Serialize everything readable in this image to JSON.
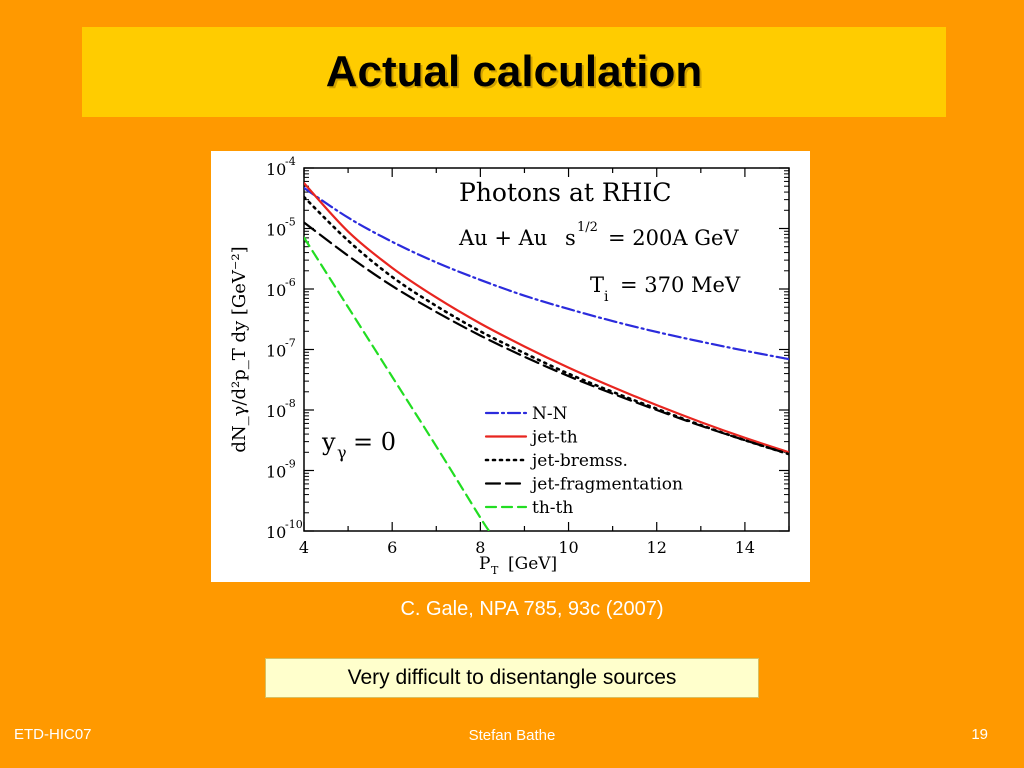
{
  "slide": {
    "title": "Actual calculation",
    "citation": "C. Gale, NPA 785, 93c (2007)",
    "note": "Very difficult to disentangle sources",
    "footer_left": "ETD-HIC07",
    "footer_center": "Stefan Bathe",
    "page_number": "19",
    "colors": {
      "background": "#ff9900",
      "title_bar": "#ffcc00",
      "note_box": "#ffffcc"
    }
  },
  "chart_data": {
    "type": "line",
    "title": "Photons at RHIC",
    "annotations": {
      "system": "Au + Au",
      "s_label": "s",
      "s_exp": "1/2",
      "energy": "= 200A GeV",
      "Ti_label": "T",
      "Ti_sub": "i",
      "Ti_value": "= 370 MeV",
      "rapidity_label": "y",
      "rapidity_sub": "γ",
      "rapidity_value": "= 0"
    },
    "xlabel": "P",
    "xlabel_sub": "T",
    "xlabel_unit": "[GeV]",
    "ylabel": "dN_γ/d²p_T dy [GeV⁻²]",
    "xlim": [
      4,
      15
    ],
    "ylim_log10": [
      -10,
      -4
    ],
    "yscale": "log",
    "x_ticks": [
      4,
      6,
      8,
      10,
      12,
      14
    ],
    "y_ticks_exp": [
      -10,
      -9,
      -8,
      -7,
      -6,
      -5,
      -4
    ],
    "y_tick_base": "10",
    "legend_position": "bottom-center",
    "series": [
      {
        "name": "N-N",
        "color": "#2b2bdc",
        "dash": "12,4,2,4",
        "x": [
          4,
          5,
          6,
          7,
          8,
          9,
          10,
          11,
          12,
          13,
          14,
          15
        ],
        "log10_y": [
          -4.33,
          -4.82,
          -5.22,
          -5.56,
          -5.85,
          -6.11,
          -6.33,
          -6.53,
          -6.71,
          -6.87,
          -7.02,
          -7.16
        ]
      },
      {
        "name": "jet-th",
        "color": "#e8251f",
        "dash": "",
        "x": [
          4,
          5,
          6,
          7,
          8,
          9,
          10,
          11,
          12,
          13,
          14,
          15
        ],
        "log10_y": [
          -4.25,
          -5.05,
          -5.65,
          -6.14,
          -6.57,
          -6.95,
          -7.3,
          -7.62,
          -7.92,
          -8.2,
          -8.46,
          -8.7
        ]
      },
      {
        "name": "jet-bremss.",
        "color": "#000000",
        "dash": "2,5",
        "x": [
          4,
          5,
          6,
          7,
          8,
          9,
          10,
          11,
          12,
          13,
          14,
          15
        ],
        "log10_y": [
          -4.48,
          -5.2,
          -5.8,
          -6.28,
          -6.7,
          -7.06,
          -7.4,
          -7.7,
          -7.98,
          -8.25,
          -8.5,
          -8.73
        ]
      },
      {
        "name": "jet-fragmentation",
        "color": "#000000",
        "dash": "14,6",
        "x": [
          4,
          5,
          6,
          7,
          8,
          9,
          10,
          11,
          12,
          13,
          14,
          15
        ],
        "log10_y": [
          -4.9,
          -5.45,
          -5.95,
          -6.38,
          -6.77,
          -7.12,
          -7.44,
          -7.73,
          -8.0,
          -8.26,
          -8.5,
          -8.73
        ]
      },
      {
        "name": "th-th",
        "color": "#22dd22",
        "dash": "10,6",
        "x": [
          4,
          5,
          6,
          7,
          8,
          8.2
        ],
        "log10_y": [
          -5.15,
          -6.3,
          -7.45,
          -8.6,
          -9.78,
          -10.0
        ]
      }
    ]
  }
}
